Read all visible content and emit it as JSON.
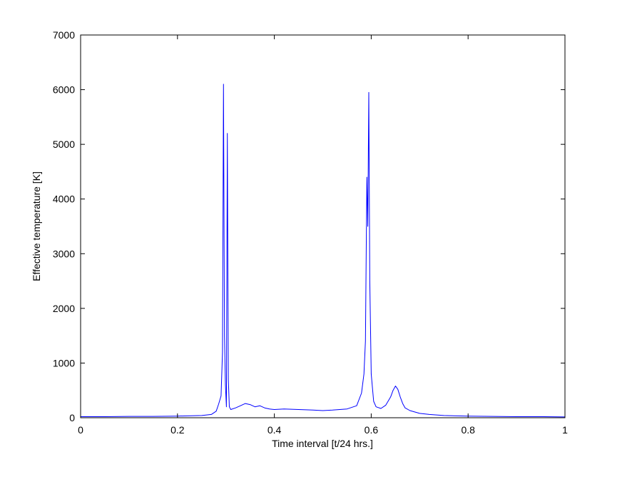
{
  "chart_data": {
    "type": "line",
    "title": "",
    "xlabel": "Time interval [t/24 hrs.]",
    "ylabel": "Effective temperature [K]",
    "xlim": [
      0,
      1
    ],
    "ylim": [
      0,
      7000
    ],
    "xticks": [
      0,
      0.2,
      0.4,
      0.6,
      0.8,
      1
    ],
    "xtick_labels": [
      "0",
      "0.2",
      "0.4",
      "0.6",
      "0.8",
      "1"
    ],
    "yticks": [
      0,
      1000,
      2000,
      3000,
      4000,
      5000,
      6000,
      7000
    ],
    "ytick_labels": [
      "0",
      "1000",
      "2000",
      "3000",
      "4000",
      "5000",
      "6000",
      "7000"
    ],
    "grid": false,
    "legend": "none",
    "line_color": "#0000ff",
    "series": [
      {
        "x": [
          0,
          0.05,
          0.1,
          0.15,
          0.2,
          0.25,
          0.27,
          0.28,
          0.285,
          0.29,
          0.293,
          0.295,
          0.297,
          0.299,
          0.301,
          0.303,
          0.305,
          0.307,
          0.31,
          0.32,
          0.33,
          0.34,
          0.35,
          0.36,
          0.37,
          0.38,
          0.39,
          0.4,
          0.42,
          0.45,
          0.48,
          0.5,
          0.52,
          0.55,
          0.57,
          0.58,
          0.585,
          0.588,
          0.591,
          0.593,
          0.595,
          0.597,
          0.6,
          0.605,
          0.61,
          0.62,
          0.63,
          0.64,
          0.645,
          0.65,
          0.655,
          0.66,
          0.665,
          0.67,
          0.68,
          0.7,
          0.72,
          0.75,
          0.8,
          0.85,
          0.9,
          0.95,
          1.0
        ],
        "y": [
          20,
          20,
          25,
          25,
          30,
          40,
          60,
          120,
          250,
          400,
          1200,
          6100,
          1500,
          600,
          200,
          5200,
          700,
          200,
          150,
          180,
          220,
          260,
          240,
          200,
          220,
          180,
          160,
          150,
          160,
          150,
          140,
          130,
          140,
          160,
          220,
          450,
          800,
          1400,
          4400,
          3500,
          5950,
          2500,
          800,
          300,
          200,
          170,
          230,
          380,
          500,
          580,
          520,
          380,
          260,
          180,
          130,
          80,
          60,
          40,
          30,
          25,
          20,
          20,
          15
        ]
      }
    ]
  }
}
